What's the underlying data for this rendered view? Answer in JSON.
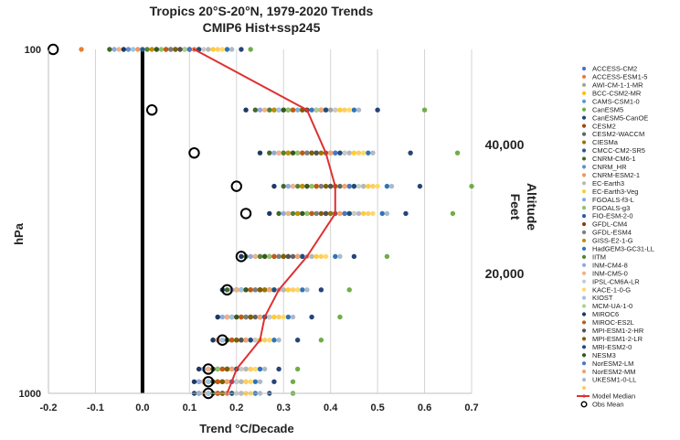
{
  "chart_data": {
    "type": "scatter",
    "title": "Tropics 20°S-20°N, 1979-2020 Trends",
    "subtitle": "CMIP6 Hist+ssp245",
    "xlabel": "Trend °C/Decade",
    "ylabel": "hPa",
    "xlim": [
      -0.2,
      0.7
    ],
    "x_ticks": [
      "-0.2",
      "-0.1",
      "0.0",
      "0.1",
      "0.2",
      "0.3",
      "0.4",
      "0.5",
      "0.6",
      "0.7"
    ],
    "y_ticks": [
      "100",
      "1000"
    ],
    "grid": "vertical",
    "legend_position": "right",
    "altitude_axis": {
      "label_1": "Altitude",
      "label_2": "Feet",
      "ticks": [
        "40,000",
        "20,000"
      ]
    },
    "levels": [
      100,
      150,
      200,
      250,
      300,
      400,
      500,
      600,
      700,
      850,
      925,
      1000
    ],
    "series": [
      {
        "name": "ACCESS-CM2",
        "color": "#4472c4",
        "values": [
          0.05,
          0.36,
          0.36,
          0.41,
          0.4,
          0.3,
          0.25,
          0.22,
          0.2,
          0.16,
          0.15,
          0.14
        ]
      },
      {
        "name": "ACCESS-ESM1-5",
        "color": "#ed7d31",
        "values": [
          -0.13,
          0.28,
          0.3,
          0.34,
          0.35,
          0.27,
          0.21,
          0.2,
          0.19,
          0.17,
          0.17,
          0.17
        ]
      },
      {
        "name": "AWI-CM-1-1-MR",
        "color": "#a5a5a5",
        "values": [
          0.12,
          0.4,
          0.43,
          0.47,
          0.45,
          0.36,
          0.3,
          0.27,
          0.24,
          0.22,
          0.21,
          0.21
        ]
      },
      {
        "name": "BCC-CSM2-MR",
        "color": "#ffc000",
        "values": [
          0.1,
          0.3,
          0.32,
          0.35,
          0.34,
          0.26,
          0.21,
          0.19,
          0.17,
          0.15,
          0.14,
          0.14
        ]
      },
      {
        "name": "CAMS-CSM1-0",
        "color": "#5b9bd5",
        "values": [
          0.03,
          0.27,
          0.29,
          0.32,
          0.31,
          0.24,
          0.2,
          0.18,
          0.16,
          0.14,
          0.13,
          0.13
        ]
      },
      {
        "name": "CanESM5",
        "color": "#70ad47",
        "values": [
          0.23,
          0.6,
          0.67,
          0.7,
          0.66,
          0.52,
          0.44,
          0.42,
          0.38,
          0.33,
          0.32,
          0.32
        ]
      },
      {
        "name": "CanESM5-CanOE",
        "color": "#264478",
        "values": [
          0.21,
          0.5,
          0.57,
          0.59,
          0.56,
          0.45,
          0.38,
          0.36,
          0.33,
          0.29,
          0.28,
          0.27
        ]
      },
      {
        "name": "CESM2",
        "color": "#9e480e",
        "values": [
          0.1,
          0.38,
          0.4,
          0.44,
          0.43,
          0.33,
          0.27,
          0.25,
          0.22,
          0.2,
          0.19,
          0.19
        ]
      },
      {
        "name": "CESM2-WACCM",
        "color": "#636363",
        "values": [
          0.09,
          0.37,
          0.39,
          0.42,
          0.41,
          0.32,
          0.26,
          0.24,
          0.21,
          0.19,
          0.18,
          0.18
        ]
      },
      {
        "name": "CIESMa",
        "color": "#997300",
        "values": [
          0.08,
          0.35,
          0.38,
          0.41,
          0.4,
          0.31,
          0.26,
          0.23,
          0.21,
          0.18,
          0.18,
          0.17
        ]
      },
      {
        "name": "CMCC-CM2-SR5",
        "color": "#255e91",
        "values": [
          0.0,
          0.31,
          0.34,
          0.37,
          0.36,
          0.28,
          0.23,
          0.21,
          0.19,
          0.16,
          0.16,
          0.16
        ]
      },
      {
        "name": "CNRM-CM6-1",
        "color": "#43682b",
        "values": [
          -0.07,
          0.24,
          0.27,
          0.3,
          0.29,
          0.22,
          0.18,
          0.16,
          0.15,
          0.13,
          0.12,
          0.12
        ]
      },
      {
        "name": "CNRM_HR",
        "color": "#698ed0",
        "values": [
          -0.03,
          0.29,
          0.31,
          0.34,
          0.33,
          0.26,
          0.21,
          0.19,
          0.18,
          0.15,
          0.14,
          0.14
        ]
      },
      {
        "name": "CNRM-ESM2-1",
        "color": "#f1975a",
        "values": [
          -0.01,
          0.3,
          0.33,
          0.36,
          0.35,
          0.27,
          0.22,
          0.2,
          0.18,
          0.16,
          0.15,
          0.15
        ]
      },
      {
        "name": "EC-Earth3",
        "color": "#b7b7b7",
        "values": [
          0.14,
          0.41,
          0.44,
          0.47,
          0.46,
          0.36,
          0.3,
          0.27,
          0.25,
          0.22,
          0.21,
          0.21
        ]
      },
      {
        "name": "EC-Earth3-Veg",
        "color": "#ffcd33",
        "values": [
          0.15,
          0.42,
          0.45,
          0.48,
          0.47,
          0.37,
          0.31,
          0.28,
          0.25,
          0.23,
          0.22,
          0.22
        ]
      },
      {
        "name": "FGOALS-f3-L",
        "color": "#7cafdd",
        "values": [
          0.06,
          0.33,
          0.35,
          0.38,
          0.37,
          0.29,
          0.24,
          0.22,
          0.2,
          0.17,
          0.16,
          0.16
        ]
      },
      {
        "name": "FGOALS-g3",
        "color": "#8cc168",
        "values": [
          0.04,
          0.31,
          0.33,
          0.36,
          0.35,
          0.27,
          0.23,
          0.21,
          0.19,
          0.16,
          0.16,
          0.15
        ]
      },
      {
        "name": "FIO-ESM-2-0",
        "color": "#335aa1",
        "values": [
          0.11,
          0.39,
          0.41,
          0.45,
          0.44,
          0.34,
          0.28,
          0.26,
          0.23,
          0.2,
          0.2,
          0.19
        ]
      },
      {
        "name": "GFDL-CM4",
        "color": "#843c0c",
        "values": [
          0.07,
          0.34,
          0.37,
          0.4,
          0.39,
          0.3,
          0.25,
          0.23,
          0.2,
          0.18,
          0.17,
          0.17
        ]
      },
      {
        "name": "GFDL-ESM4",
        "color": "#7c7c7c",
        "values": [
          0.06,
          0.32,
          0.35,
          0.38,
          0.37,
          0.29,
          0.24,
          0.22,
          0.19,
          0.17,
          0.16,
          0.16
        ]
      },
      {
        "name": "GISS-E2-1-G",
        "color": "#bf8f00",
        "values": [
          0.02,
          0.28,
          0.31,
          0.34,
          0.33,
          0.25,
          0.21,
          0.19,
          0.17,
          0.15,
          0.14,
          0.14
        ]
      },
      {
        "name": "HadGEM3-GC31-LL",
        "color": "#2e75b6",
        "values": [
          0.18,
          0.45,
          0.48,
          0.52,
          0.51,
          0.41,
          0.34,
          0.31,
          0.28,
          0.25,
          0.24,
          0.24
        ]
      },
      {
        "name": "IITM",
        "color": "#548235",
        "values": [
          0.01,
          0.27,
          0.3,
          0.33,
          0.32,
          0.25,
          0.2,
          0.18,
          0.16,
          0.14,
          0.13,
          0.13
        ]
      },
      {
        "name": "INM-CM4-8",
        "color": "#8faadc",
        "values": [
          -0.06,
          0.25,
          0.28,
          0.31,
          0.3,
          0.23,
          0.19,
          0.17,
          0.16,
          0.13,
          0.12,
          0.12
        ]
      },
      {
        "name": "INM-CM5-0",
        "color": "#f4b183",
        "values": [
          -0.05,
          0.26,
          0.29,
          0.32,
          0.31,
          0.24,
          0.2,
          0.18,
          0.16,
          0.14,
          0.13,
          0.13
        ]
      },
      {
        "name": "IPSL-CM6A-LR",
        "color": "#c9c9c9",
        "values": [
          0.13,
          0.41,
          0.43,
          0.46,
          0.45,
          0.35,
          0.29,
          0.27,
          0.24,
          0.21,
          0.2,
          0.2
        ]
      },
      {
        "name": "KACE-1-0-G",
        "color": "#ffd966",
        "values": [
          0.17,
          0.44,
          0.47,
          0.5,
          0.49,
          0.39,
          0.33,
          0.3,
          0.27,
          0.24,
          0.23,
          0.23
        ]
      },
      {
        "name": "KIOST",
        "color": "#9dc3e6",
        "values": [
          -0.02,
          0.29,
          0.32,
          0.35,
          0.34,
          0.26,
          0.21,
          0.19,
          0.17,
          0.15,
          0.14,
          0.14
        ]
      },
      {
        "name": "MCM-UA-1-0",
        "color": "#a9d18e",
        "values": [
          0.09,
          0.37,
          0.4,
          0.43,
          0.42,
          0.33,
          0.27,
          0.25,
          0.22,
          0.2,
          0.19,
          0.19
        ]
      },
      {
        "name": "MIROC6",
        "color": "#203864",
        "values": [
          -0.04,
          0.22,
          0.25,
          0.28,
          0.27,
          0.21,
          0.17,
          0.16,
          0.15,
          0.12,
          0.11,
          0.11
        ]
      },
      {
        "name": "MIROC-ES2L",
        "color": "#c55a11",
        "values": [
          0.05,
          0.32,
          0.34,
          0.37,
          0.36,
          0.28,
          0.23,
          0.21,
          0.19,
          0.17,
          0.16,
          0.16
        ]
      },
      {
        "name": "MPI-ESM1-2-HR",
        "color": "#525252",
        "values": [
          0.08,
          0.35,
          0.37,
          0.4,
          0.39,
          0.31,
          0.25,
          0.23,
          0.21,
          0.18,
          0.17,
          0.17
        ]
      },
      {
        "name": "MPI-ESM1-2-LR",
        "color": "#7f6000",
        "values": [
          0.07,
          0.34,
          0.36,
          0.39,
          0.38,
          0.3,
          0.25,
          0.23,
          0.2,
          0.18,
          0.17,
          0.17
        ]
      },
      {
        "name": "MRI-ESM2-0",
        "color": "#1f4e79",
        "values": [
          0.12,
          0.39,
          0.42,
          0.45,
          0.44,
          0.34,
          0.28,
          0.26,
          0.23,
          0.2,
          0.19,
          0.19
        ]
      },
      {
        "name": "NESM3",
        "color": "#385723",
        "values": [
          0.03,
          0.3,
          0.32,
          0.35,
          0.34,
          0.26,
          0.22,
          0.2,
          0.18,
          0.15,
          0.15,
          0.15
        ]
      },
      {
        "name": "NorESM2-LM",
        "color": "#4a76c6",
        "values": [
          0.1,
          0.38,
          0.41,
          0.44,
          0.43,
          0.33,
          0.27,
          0.25,
          0.22,
          0.19,
          0.19,
          0.18
        ]
      },
      {
        "name": "NorESM2-MM",
        "color": "#f3a46e",
        "values": [
          0.11,
          0.38,
          0.4,
          0.43,
          0.42,
          0.33,
          0.27,
          0.25,
          0.22,
          0.19,
          0.18,
          0.18
        ]
      },
      {
        "name": "UKESM1-0-LL",
        "color": "#adb9ca",
        "values": [
          0.19,
          0.46,
          0.49,
          0.53,
          0.52,
          0.42,
          0.35,
          0.32,
          0.29,
          0.26,
          0.25,
          0.25
        ]
      },
      {
        "name": "",
        "color": "#ffcc66",
        "values": [
          0.16,
          0.43,
          0.46,
          0.49,
          0.48,
          0.38,
          0.32,
          0.29,
          0.26,
          0.23,
          0.22,
          0.22
        ]
      }
    ],
    "median": {
      "name": "Model Median",
      "color": "#e03030",
      "values": [
        0.11,
        0.35,
        0.39,
        0.41,
        0.41,
        0.35,
        0.29,
        0.26,
        0.25,
        0.2,
        0.19,
        0.18
      ]
    },
    "obs": {
      "name": "Obs Mean",
      "color": "#000000",
      "values": [
        -0.19,
        0.02,
        0.11,
        0.2,
        0.22,
        0.21,
        0.18,
        null,
        0.17,
        0.14,
        0.14,
        0.14
      ]
    }
  }
}
